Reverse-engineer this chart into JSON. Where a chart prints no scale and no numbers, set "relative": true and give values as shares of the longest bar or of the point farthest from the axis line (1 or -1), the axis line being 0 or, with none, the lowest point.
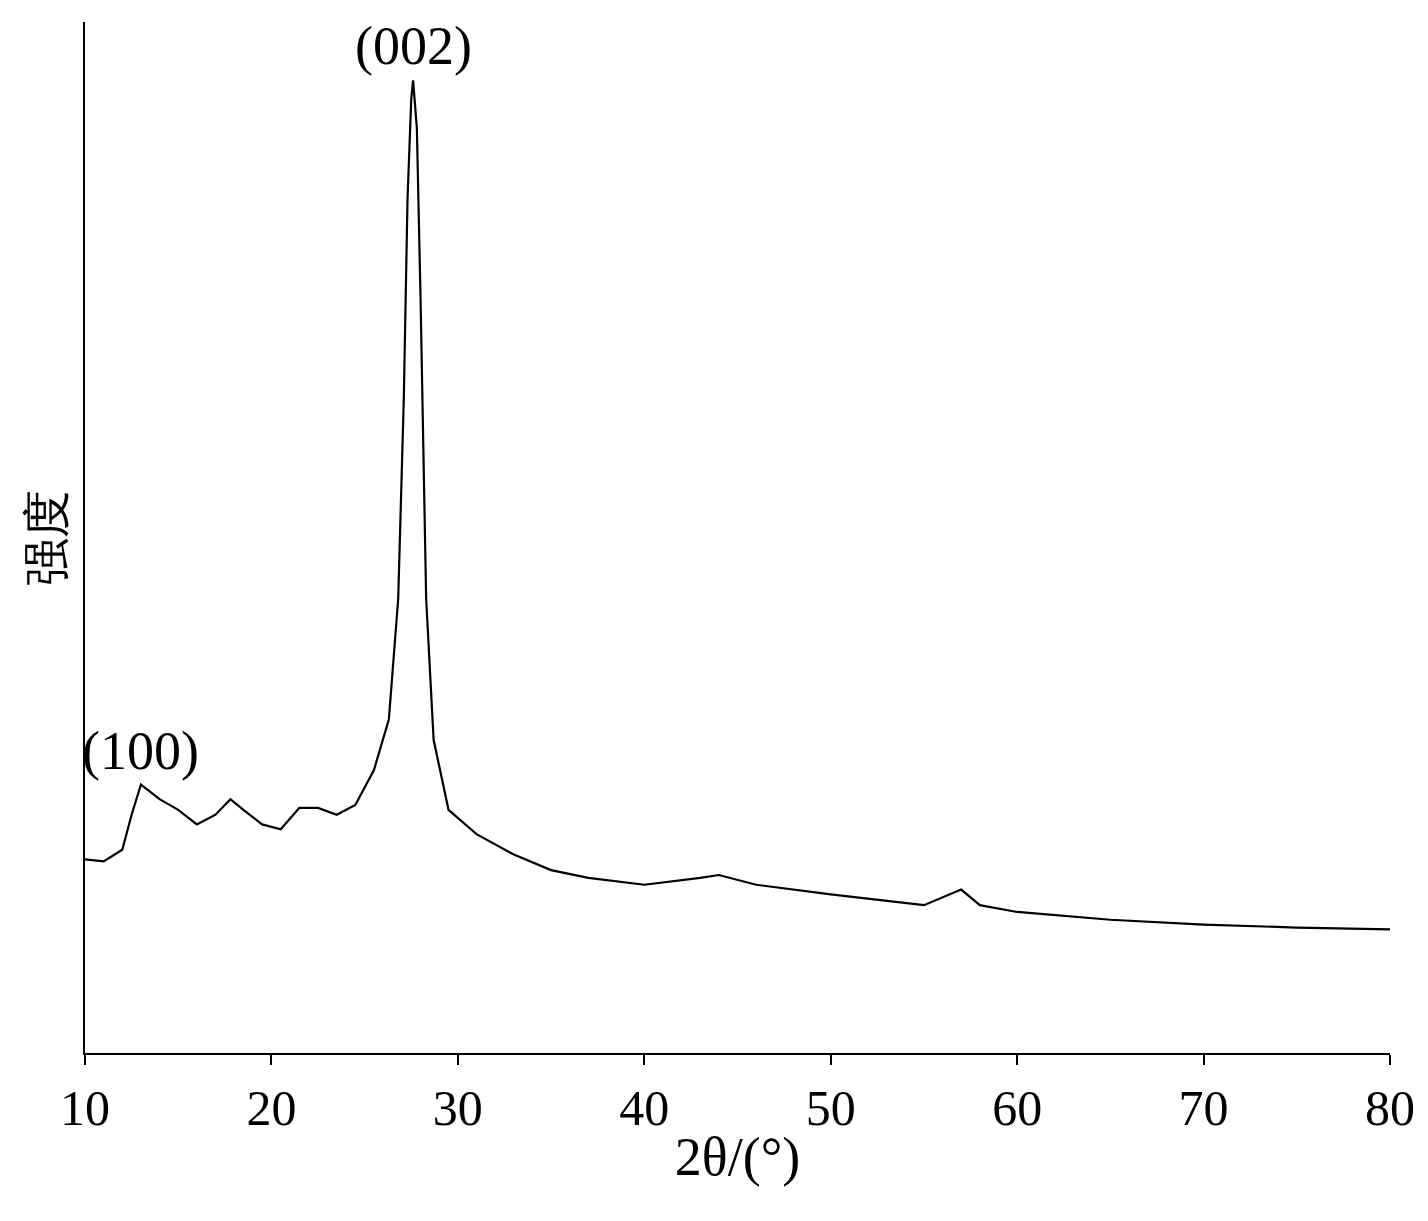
{
  "chart_data": {
    "type": "line",
    "relative": true,
    "xlabel": "2θ/(°)",
    "ylabel": "强度",
    "xlim": [
      10,
      80
    ],
    "xticks": [
      10,
      20,
      30,
      40,
      50,
      60,
      70,
      80
    ],
    "marker": "none",
    "line_style": "solid",
    "annotations": [
      {
        "text": "(100)",
        "x": 13,
        "y": 0.276
      },
      {
        "text": "(002)",
        "x": 27.6,
        "y": 1
      }
    ],
    "series": [
      {
        "color": "#000000",
        "x": [
          10,
          11,
          12,
          12.5,
          13,
          14,
          15,
          16,
          17,
          17.8,
          18.5,
          19.5,
          20.5,
          21.5,
          22.5,
          23.5,
          24.5,
          25.5,
          26.3,
          26.8,
          27.1,
          27.3,
          27.5,
          27.6,
          27.8,
          28.0,
          28.3,
          28.7,
          29.5,
          31,
          33,
          35,
          37,
          40,
          43,
          44,
          46,
          50,
          55,
          57,
          58,
          60,
          65,
          70,
          75,
          80
        ],
        "values": [
          0.199,
          0.197,
          0.209,
          0.245,
          0.276,
          0.261,
          0.25,
          0.235,
          0.245,
          0.261,
          0.25,
          0.235,
          0.23,
          0.252,
          0.252,
          0.245,
          0.255,
          0.291,
          0.343,
          0.467,
          0.672,
          0.878,
          0.981,
          1,
          0.951,
          0.775,
          0.467,
          0.322,
          0.25,
          0.225,
          0.204,
          0.188,
          0.18,
          0.173,
          0.18,
          0.183,
          0.173,
          0.163,
          0.152,
          0.168,
          0.152,
          0.145,
          0.137,
          0.132,
          0.129,
          0.127
        ]
      }
    ]
  }
}
